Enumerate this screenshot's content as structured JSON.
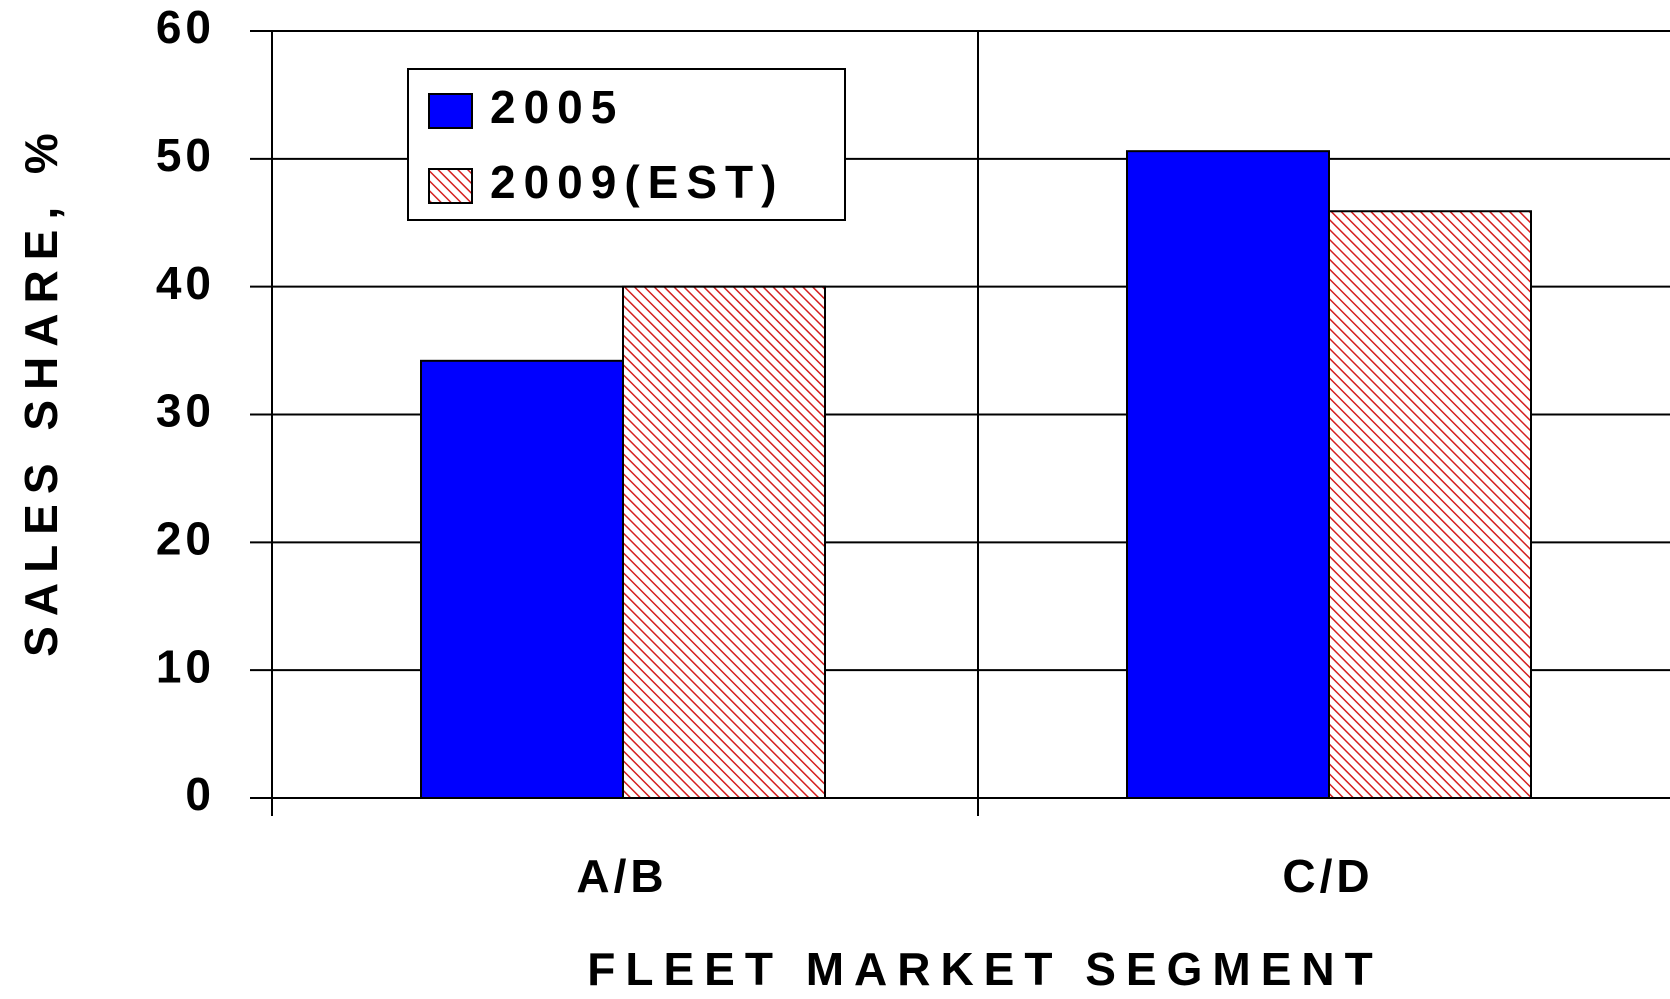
{
  "chart_data": {
    "type": "bar",
    "xlabel": "FLEET MARKET SEGMENT",
    "ylabel": "SALES SHARE, %",
    "categories": [
      "A/B",
      "C/D"
    ],
    "series": [
      {
        "name": "2005",
        "color": "#0000ff",
        "pattern": "solid",
        "values": [
          34.2,
          50.6
        ]
      },
      {
        "name": "2009(EST)",
        "color": "#d42020",
        "pattern": "hatch",
        "values": [
          40,
          45.9
        ]
      }
    ],
    "ylim": [
      0,
      60
    ],
    "yticks": [
      0,
      10,
      20,
      30,
      40,
      50,
      60
    ],
    "grid": true,
    "legend": "upper left"
  }
}
